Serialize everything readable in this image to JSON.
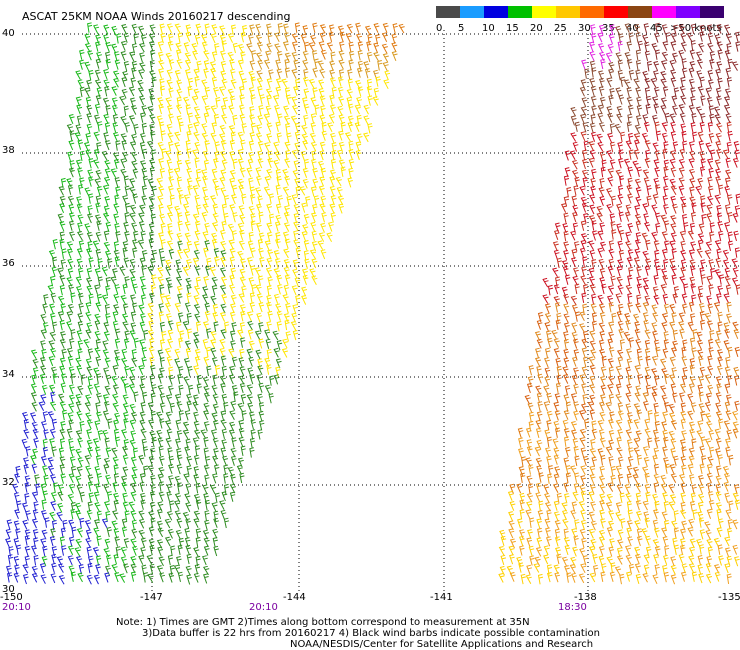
{
  "title": "ASCAT 25KM NOAA Winds 20160217 descending",
  "legend": {
    "ticks": [
      "0",
      "5",
      "10",
      "15",
      "20",
      "25",
      "30",
      "35",
      "40",
      "45",
      ">50 knots"
    ],
    "colors": [
      "#4a4a4a",
      "#1a9cff",
      "#0000e0",
      "#00c000",
      "#ffff00",
      "#ffc800",
      "#ff6a00",
      "#ff0000",
      "#8b4513",
      "#ff00ff",
      "#7f00ff",
      "#3a0070"
    ]
  },
  "lat_labels": [
    "40",
    "38",
    "36",
    "34",
    "32",
    "30"
  ],
  "lon_labels": [
    "-150",
    "-147",
    "-144",
    "-141",
    "-138",
    "-135"
  ],
  "time_labels": [
    "20:10",
    "20:10",
    "18:30"
  ],
  "notes": {
    "line1": "Note: 1) Times are GMT 2)Times along bottom correspond to measurement at 35N",
    "line2": "3)Data buffer is 22 hrs from 20160217 4) Black wind barbs indicate possible contamination",
    "line3": "NOAA/NESDIS/Center for Satellite Applications and Research"
  }
}
